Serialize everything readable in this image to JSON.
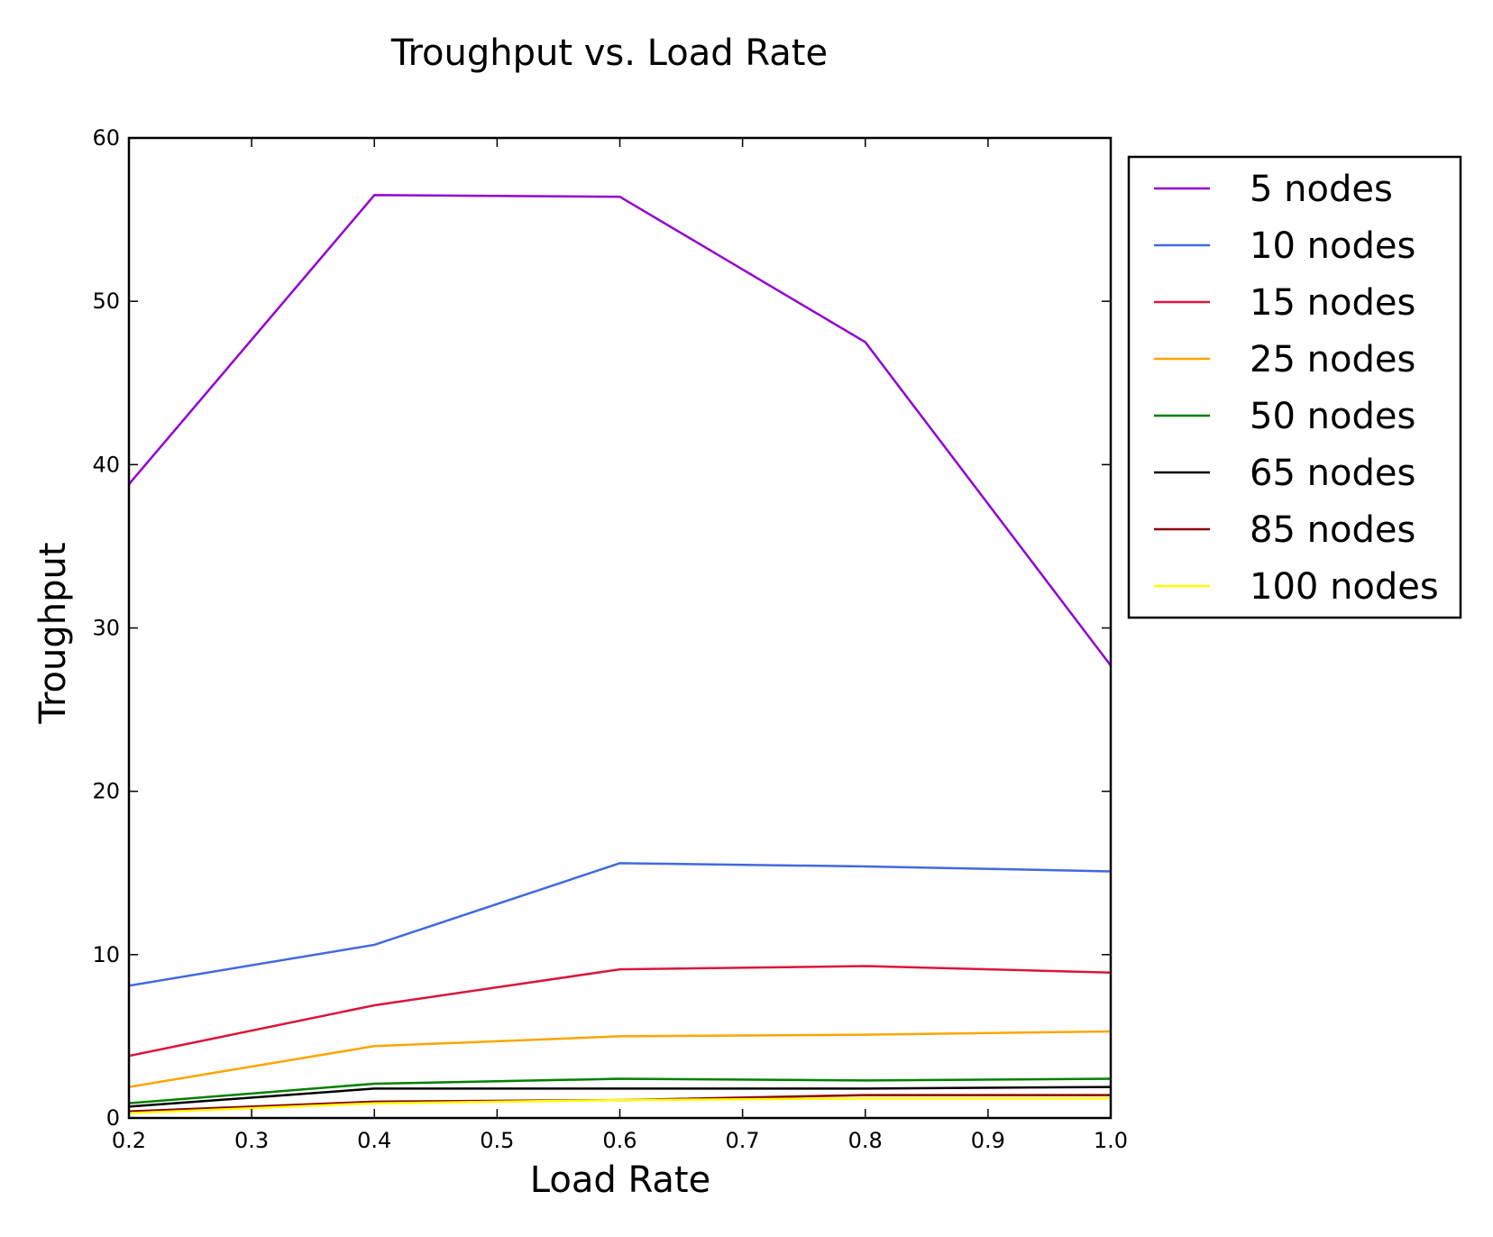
{
  "chart_data": {
    "type": "line",
    "title": "Troughput vs. Load Rate",
    "xlabel": "Load Rate",
    "ylabel": "Troughput",
    "xlim": [
      0.2,
      1.0
    ],
    "ylim": [
      0,
      60
    ],
    "xticks": [
      "0.2",
      "0.3",
      "0.4",
      "0.5",
      "0.6",
      "0.7",
      "0.8",
      "0.9",
      "1.0"
    ],
    "yticks": [
      "0",
      "10",
      "20",
      "30",
      "40",
      "50",
      "60"
    ],
    "x": [
      0.2,
      0.4,
      0.6,
      0.8,
      1.0
    ],
    "grid": false,
    "legend_position": "outside-right-top",
    "series": [
      {
        "name": "5 nodes",
        "color": "#9400D3",
        "values": [
          38.8,
          56.5,
          56.4,
          47.5,
          27.7
        ]
      },
      {
        "name": "10 nodes",
        "color": "#4169E1",
        "values": [
          8.1,
          10.6,
          15.6,
          15.4,
          15.1
        ]
      },
      {
        "name": "15 nodes",
        "color": "#DC143C",
        "values": [
          3.8,
          6.9,
          9.1,
          9.3,
          8.9
        ]
      },
      {
        "name": "25 nodes",
        "color": "#FFA500",
        "values": [
          1.9,
          4.4,
          5.0,
          5.1,
          5.3
        ]
      },
      {
        "name": "50 nodes",
        "color": "#008000",
        "values": [
          0.9,
          2.1,
          2.4,
          2.3,
          2.4
        ]
      },
      {
        "name": "65 nodes",
        "color": "#000000",
        "values": [
          0.7,
          1.8,
          1.8,
          1.8,
          1.9
        ]
      },
      {
        "name": "85 nodes",
        "color": "#8B0000",
        "values": [
          0.4,
          1.0,
          1.1,
          1.4,
          1.4
        ]
      },
      {
        "name": "100 nodes",
        "color": "#FFFF00",
        "values": [
          0.3,
          0.9,
          1.1,
          1.2,
          1.2
        ]
      }
    ]
  }
}
